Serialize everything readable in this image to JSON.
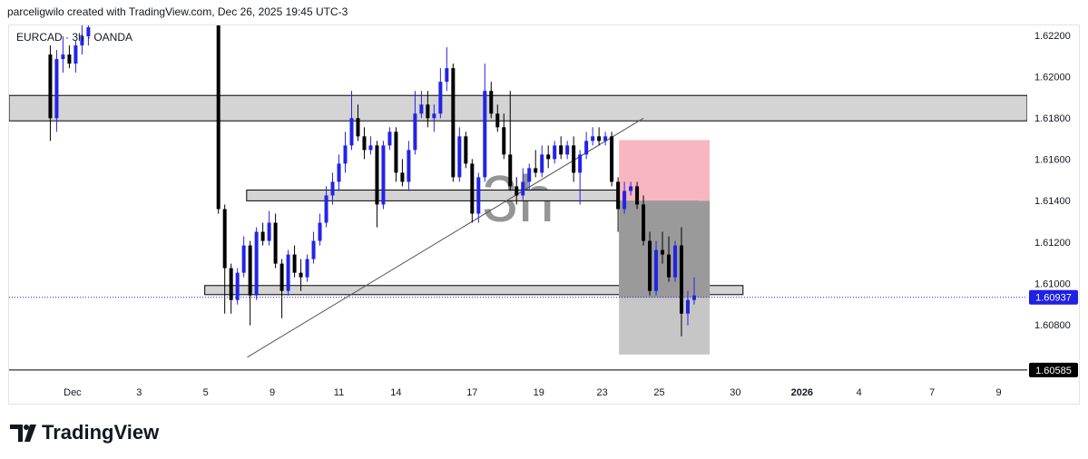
{
  "header": {
    "text": "parceligwilo created with TradingView.com, Dec 26, 2025 19:45 UTC-3"
  },
  "chart_data": {
    "type": "candlestick",
    "title": "EURCAD · 3h · OANDA",
    "watermark": "3h",
    "x": [
      13,
      15,
      17,
      19,
      21,
      23,
      25,
      66,
      68,
      70,
      72,
      74,
      76,
      78,
      80,
      82,
      84,
      86,
      88,
      90,
      92,
      94,
      96,
      98,
      100,
      102,
      104,
      106,
      108,
      110,
      112,
      114,
      116,
      118,
      120,
      122,
      124,
      126,
      128,
      130,
      132,
      134,
      136,
      138,
      140,
      142,
      144,
      146,
      148,
      150,
      152,
      154,
      156,
      158,
      160,
      162,
      164,
      166,
      168,
      170,
      172,
      174,
      176,
      178,
      180,
      182,
      184,
      186,
      188,
      190,
      192,
      194,
      196,
      198,
      200,
      202,
      204,
      206,
      208,
      210,
      212,
      214,
      216
    ],
    "open": [
      1.62112,
      1.61804,
      1.6209,
      1.62112,
      1.62068,
      1.62156,
      1.622,
      1.62253,
      1.61364,
      1.61078,
      1.60924,
      1.61056,
      1.61188,
      1.60946,
      1.61254,
      1.6121,
      1.61298,
      1.611,
      1.60968,
      1.61144,
      1.61056,
      1.61034,
      1.61122,
      1.6121,
      1.61298,
      1.6143,
      1.61496,
      1.61584,
      1.61672,
      1.61804,
      1.61716,
      1.6165,
      1.61672,
      1.61386,
      1.61672,
      1.61738,
      1.6154,
      1.61496,
      1.6165,
      1.61826,
      1.6187,
      1.61804,
      1.61826,
      1.6198,
      1.62046,
      1.61518,
      1.61716,
      1.61584,
      1.61342,
      1.61518,
      1.61936,
      1.61826,
      1.6176,
      1.61628,
      1.61474,
      1.6143,
      1.61496,
      1.61562,
      1.6154,
      1.61628,
      1.61606,
      1.61672,
      1.61628,
      1.61672,
      1.6154,
      1.61628,
      1.61694,
      1.61716,
      1.61694,
      1.61716,
      1.61496,
      1.61364,
      1.61452,
      1.61474,
      1.61386,
      1.6121,
      1.60968,
      1.61166,
      1.61144,
      1.61034,
      1.61188,
      1.60858,
      1.60924
    ],
    "high": [
      1.62156,
      1.62134,
      1.622,
      1.62156,
      1.62178,
      1.62253,
      1.6228,
      1.623,
      1.61386,
      1.611,
      1.61078,
      1.61232,
      1.6121,
      1.61276,
      1.61298,
      1.61355,
      1.61342,
      1.61122,
      1.61166,
      1.61188,
      1.61122,
      1.61144,
      1.61254,
      1.61342,
      1.61474,
      1.6154,
      1.61628,
      1.61738,
      1.61936,
      1.6187,
      1.6176,
      1.61716,
      1.61694,
      1.61694,
      1.6176,
      1.6176,
      1.61606,
      1.61694,
      1.61936,
      1.61936,
      1.61936,
      1.6187,
      1.62046,
      1.62147,
      1.62068,
      1.6176,
      1.61738,
      1.61606,
      1.6154,
      1.62068,
      1.6198,
      1.6187,
      1.61826,
      1.61936,
      1.61518,
      1.61562,
      1.61584,
      1.6165,
      1.61672,
      1.61672,
      1.61694,
      1.61716,
      1.61694,
      1.61716,
      1.6165,
      1.61738,
      1.6176,
      1.6176,
      1.61738,
      1.61738,
      1.61518,
      1.61496,
      1.61496,
      1.61496,
      1.6143,
      1.61254,
      1.6121,
      1.61254,
      1.61232,
      1.6121,
      1.61276,
      1.60968,
      1.61034
    ],
    "low": [
      1.61694,
      1.61738,
      1.62024,
      1.62046,
      1.62024,
      1.62112,
      1.62156,
      1.61342,
      1.60858,
      1.60858,
      1.60902,
      1.61034,
      1.60801,
      1.60924,
      1.61188,
      1.61188,
      1.61078,
      1.60836,
      1.60946,
      1.61034,
      1.60968,
      1.61012,
      1.611,
      1.61188,
      1.61276,
      1.61386,
      1.61452,
      1.6154,
      1.6165,
      1.61694,
      1.61606,
      1.61628,
      1.61276,
      1.61364,
      1.6165,
      1.61496,
      1.61474,
      1.61452,
      1.61628,
      1.61804,
      1.6176,
      1.61738,
      1.61804,
      1.61936,
      1.61496,
      1.61496,
      1.61562,
      1.61298,
      1.61298,
      1.61496,
      1.61804,
      1.61738,
      1.61606,
      1.61452,
      1.61386,
      1.61408,
      1.61452,
      1.61518,
      1.61518,
      1.61562,
      1.61584,
      1.61606,
      1.61606,
      1.61496,
      1.61386,
      1.61606,
      1.61672,
      1.61672,
      1.61672,
      1.61474,
      1.61254,
      1.61342,
      1.6143,
      1.61364,
      1.61188,
      1.60946,
      1.60946,
      1.611,
      1.61012,
      1.61012,
      1.60748,
      1.60801,
      1.60902
    ],
    "close": [
      1.61804,
      1.6209,
      1.62112,
      1.62068,
      1.62156,
      1.622,
      1.62244,
      1.61364,
      1.61078,
      1.60924,
      1.61056,
      1.61188,
      1.60946,
      1.61254,
      1.6121,
      1.61298,
      1.611,
      1.60968,
      1.61144,
      1.61056,
      1.61034,
      1.61122,
      1.6121,
      1.61298,
      1.6143,
      1.61496,
      1.61584,
      1.61672,
      1.61804,
      1.61716,
      1.6165,
      1.61672,
      1.61386,
      1.61672,
      1.61738,
      1.6154,
      1.61496,
      1.6165,
      1.61826,
      1.6187,
      1.61804,
      1.61826,
      1.6198,
      1.62046,
      1.61518,
      1.61716,
      1.61584,
      1.61342,
      1.61518,
      1.61936,
      1.61826,
      1.6176,
      1.61628,
      1.61474,
      1.6143,
      1.61496,
      1.61562,
      1.6154,
      1.61628,
      1.61606,
      1.61672,
      1.61628,
      1.61672,
      1.6154,
      1.61628,
      1.61694,
      1.61716,
      1.61694,
      1.61716,
      1.61496,
      1.61364,
      1.61452,
      1.61474,
      1.61386,
      1.6121,
      1.60968,
      1.61166,
      1.61144,
      1.61034,
      1.61188,
      1.60858,
      1.60924,
      1.60946
    ],
    "up_color": "#2323e6",
    "down_color": "#000000",
    "xlim": [
      0,
      321
    ],
    "ylim": [
      1.60532,
      1.62253
    ],
    "yticks": [
      {
        "value": 1.622,
        "label": "1.62200"
      },
      {
        "value": 1.62,
        "label": "1.62000"
      },
      {
        "value": 1.618,
        "label": "1.61800"
      },
      {
        "value": 1.616,
        "label": "1.61600"
      },
      {
        "value": 1.614,
        "label": "1.61400"
      },
      {
        "value": 1.612,
        "label": "1.61200"
      },
      {
        "value": 1.61,
        "label": "1.61000"
      },
      {
        "value": 1.608,
        "label": "1.60800"
      }
    ],
    "xticks": [
      {
        "value": 20,
        "label": "Dec"
      },
      {
        "value": 41,
        "label": "3"
      },
      {
        "value": 62,
        "label": "5"
      },
      {
        "value": 83,
        "label": "9"
      },
      {
        "value": 104,
        "label": "11"
      },
      {
        "value": 122,
        "label": "14"
      },
      {
        "value": 146,
        "label": "17"
      },
      {
        "value": 167,
        "label": "19"
      },
      {
        "value": 187,
        "label": "23"
      },
      {
        "value": 205,
        "label": "25"
      },
      {
        "value": 229,
        "label": "30"
      },
      {
        "value": 250,
        "label": "2026"
      },
      {
        "value": 268,
        "label": "4"
      },
      {
        "value": 291,
        "label": "7"
      },
      {
        "value": 312,
        "label": "9"
      }
    ],
    "last_price": 1.60937,
    "last_price_color": "#1f1fe6",
    "level": 1.60585,
    "zones": [
      {
        "top": 1.61914,
        "bottom": 1.61791,
        "x": [
          0,
          321
        ]
      },
      {
        "top": 1.61456,
        "bottom": 1.61404,
        "x": [
          74.9,
          217
        ]
      },
      {
        "top": 1.60994,
        "bottom": 1.6095,
        "x": [
          61.7,
          231.4
        ]
      }
    ],
    "zone_color": "#d4d4d4",
    "trendline": {
      "x": [
        75.1,
        200
      ],
      "y": [
        1.60647,
        1.61804
      ]
    },
    "position": {
      "x": [
        192.3,
        220.9
      ],
      "entry": 1.61404,
      "stop": 1.61698,
      "target": 1.6066,
      "stop_color": "#f8b7c0",
      "target_color": "#c6c6c6",
      "open_color": "#9a9a9a"
    }
  },
  "footer": {
    "brand": "TradingView"
  }
}
